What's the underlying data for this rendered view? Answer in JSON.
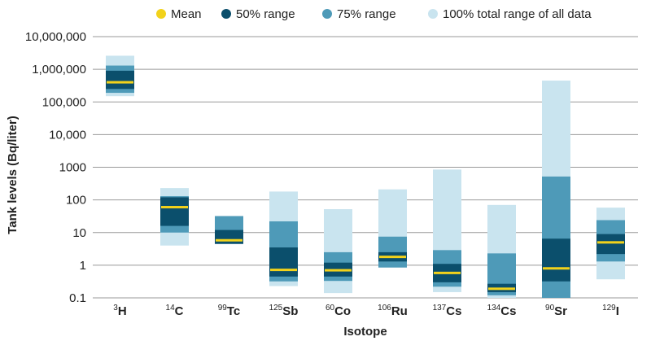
{
  "chart_data": {
    "type": "bar",
    "chart_style": "range-bar",
    "title": "",
    "xlabel": "Isotope",
    "ylabel": "Tank levels (Bq/liter)",
    "y_scale": "log",
    "ylim": [
      0.1,
      10000000
    ],
    "y_ticks": [
      0.1,
      1,
      10,
      100,
      1000,
      10000,
      100000,
      1000000,
      10000000
    ],
    "y_tick_labels": [
      "0.1",
      "1",
      "10",
      "100",
      "1000",
      "10,000",
      "100,000",
      "1,000,000",
      "10,000,000"
    ],
    "grid": "horizontal",
    "legend_position": "top",
    "legend": [
      {
        "key": "mean",
        "label": "Mean",
        "color": "#f2d21b",
        "shape": "dot"
      },
      {
        "key": "r50",
        "label": "50% range",
        "color": "#0b4f6c",
        "shape": "dot"
      },
      {
        "key": "r75",
        "label": "75% range",
        "color": "#4e9ab8",
        "shape": "dot"
      },
      {
        "key": "r100",
        "label": "100% total range of all data",
        "color": "#c9e4ef",
        "shape": "dot"
      }
    ],
    "categories": [
      {
        "mass": "3",
        "symbol": "H",
        "r100": [
          150000,
          2600000
        ],
        "r75": [
          190000,
          1300000
        ],
        "r50": [
          250000,
          900000
        ],
        "mean": 400000
      },
      {
        "mass": "14",
        "symbol": "C",
        "r100": [
          4,
          230
        ],
        "r75": [
          10,
          130
        ],
        "r50": [
          16,
          120
        ],
        "mean": 60
      },
      {
        "mass": "99",
        "symbol": "Tc",
        "r100": [
          4.5,
          32
        ],
        "r75": [
          4.5,
          32
        ],
        "r50": [
          4.5,
          12
        ],
        "mean": 5.8
      },
      {
        "mass": "125",
        "symbol": "Sb",
        "r100": [
          0.23,
          180
        ],
        "r75": [
          0.32,
          22
        ],
        "r50": [
          0.45,
          3.5
        ],
        "mean": 0.72
      },
      {
        "mass": "60",
        "symbol": "Co",
        "r100": [
          0.14,
          52
        ],
        "r75": [
          0.33,
          2.5
        ],
        "r50": [
          0.45,
          1.2
        ],
        "mean": 0.7
      },
      {
        "mass": "106",
        "symbol": "Ru",
        "r100": [
          0.85,
          210
        ],
        "r75": [
          0.85,
          7.5
        ],
        "r50": [
          1.3,
          2.5
        ],
        "mean": 1.8
      },
      {
        "mass": "137",
        "symbol": "Cs",
        "r100": [
          0.15,
          850
        ],
        "r75": [
          0.22,
          2.9
        ],
        "r50": [
          0.3,
          1.1
        ],
        "mean": 0.58
      },
      {
        "mass": "134",
        "symbol": "Cs",
        "r100": [
          0.1,
          70
        ],
        "r75": [
          0.12,
          2.3
        ],
        "r50": [
          0.15,
          0.27
        ],
        "mean": 0.19
      },
      {
        "mass": "90",
        "symbol": "Sr",
        "r100": [
          0.1,
          450000
        ],
        "r75": [
          0.1,
          520
        ],
        "r50": [
          0.32,
          6.5
        ],
        "mean": 0.8
      },
      {
        "mass": "129",
        "symbol": "I",
        "r100": [
          0.37,
          58
        ],
        "r75": [
          1.3,
          24
        ],
        "r50": [
          2.2,
          9
        ],
        "mean": 5
      }
    ]
  }
}
